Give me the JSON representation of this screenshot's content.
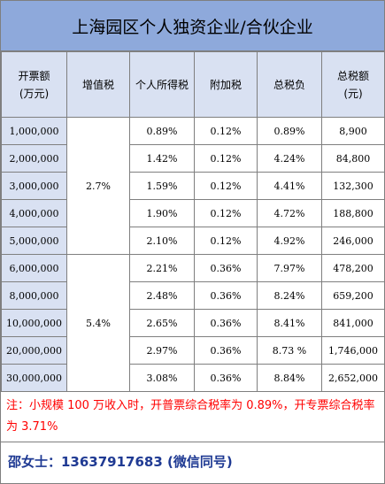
{
  "title": "上海园区个人独资企业/合伙企业",
  "headers": [
    "开票额\n(万元)",
    "增值税",
    "个人所得税",
    "附加税",
    "总税负",
    "总税额\n(元)"
  ],
  "groups": [
    {
      "vat": "2.7%",
      "rows": [
        {
          "revenue": "1,000,000",
          "income_tax": "0.89%",
          "surtax": "0.12%",
          "total_rate": "0.89%",
          "total_tax": "8,900"
        },
        {
          "revenue": "2,000,000",
          "income_tax": "1.42%",
          "surtax": "0.12%",
          "total_rate": "4.24%",
          "total_tax": "84,800"
        },
        {
          "revenue": "3,000,000",
          "income_tax": "1.59%",
          "surtax": "0.12%",
          "total_rate": "4.41%",
          "total_tax": "132,300"
        },
        {
          "revenue": "4,000,000",
          "income_tax": "1.90%",
          "surtax": "0.12%",
          "total_rate": "4.72%",
          "total_tax": "188,800"
        },
        {
          "revenue": "5,000,000",
          "income_tax": "2.10%",
          "surtax": "0.12%",
          "total_rate": "4.92%",
          "total_tax": "246,000"
        }
      ]
    },
    {
      "vat": "5.4%",
      "rows": [
        {
          "revenue": "6,000,000",
          "income_tax": "2.21%",
          "surtax": "0.36%",
          "total_rate": "7.97%",
          "total_tax": "478,200"
        },
        {
          "revenue": "8,000,000",
          "income_tax": "2.48%",
          "surtax": "0.36%",
          "total_rate": "8.24%",
          "total_tax": "659,200"
        },
        {
          "revenue": "10,000,000",
          "income_tax": "2.65%",
          "surtax": "0.36%",
          "total_rate": "8.41%",
          "total_tax": "841,000"
        },
        {
          "revenue": "20,000,000",
          "income_tax": "2.97%",
          "surtax": "0.36%",
          "total_rate": "8.73 %",
          "total_tax": "1,746,000"
        },
        {
          "revenue": "30,000,000",
          "income_tax": "3.08%",
          "surtax": "0.36%",
          "total_rate": "8.84%",
          "total_tax": "2,652,000"
        }
      ]
    }
  ],
  "note": "注：小规模 100 万收入时，开普票综合税率为 0.89%，开专票综合税率为 3.71%",
  "contact": "邵女士：13637917683 (微信同号)",
  "colors": {
    "title_bg": "#8ea9db",
    "header_bg": "#d9e1f2",
    "note_text": "#ff0000",
    "contact_text": "#1f3a93"
  }
}
